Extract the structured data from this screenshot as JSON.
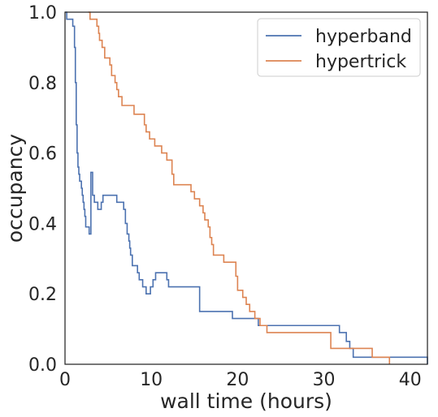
{
  "chart_data": {
    "type": "line",
    "xlabel": "wall time (hours)",
    "ylabel": "occupancy",
    "xlim": [
      0,
      42
    ],
    "ylim": [
      0.0,
      1.0
    ],
    "xticks": [
      0,
      10,
      20,
      30,
      40
    ],
    "xtick_labels": [
      "0",
      "10",
      "20",
      "30",
      "40"
    ],
    "yticks": [
      0.0,
      0.2,
      0.4,
      0.6,
      0.8,
      1.0
    ],
    "ytick_labels": [
      "0.0",
      "0.2",
      "0.4",
      "0.6",
      "0.8",
      "1.0"
    ],
    "grid": false,
    "legend_position": "top-right",
    "series": [
      {
        "name": "hyperband",
        "color": "#4c72b0",
        "points": [
          [
            0,
            1.0
          ],
          [
            0.2,
            1.0
          ],
          [
            0.2,
            0.98
          ],
          [
            0.9,
            0.98
          ],
          [
            0.9,
            0.96
          ],
          [
            1.1,
            0.96
          ],
          [
            1.1,
            0.9
          ],
          [
            1.2,
            0.9
          ],
          [
            1.2,
            0.8
          ],
          [
            1.3,
            0.8
          ],
          [
            1.3,
            0.68
          ],
          [
            1.4,
            0.68
          ],
          [
            1.4,
            0.6
          ],
          [
            1.5,
            0.6
          ],
          [
            1.5,
            0.56
          ],
          [
            1.6,
            0.56
          ],
          [
            1.6,
            0.54
          ],
          [
            1.7,
            0.54
          ],
          [
            1.7,
            0.52
          ],
          [
            1.9,
            0.52
          ],
          [
            1.9,
            0.5
          ],
          [
            2.0,
            0.5
          ],
          [
            2.0,
            0.48
          ],
          [
            2.1,
            0.48
          ],
          [
            2.1,
            0.46
          ],
          [
            2.2,
            0.46
          ],
          [
            2.2,
            0.44
          ],
          [
            2.3,
            0.44
          ],
          [
            2.3,
            0.42
          ],
          [
            2.4,
            0.42
          ],
          [
            2.4,
            0.39
          ],
          [
            2.8,
            0.39
          ],
          [
            2.8,
            0.37
          ],
          [
            3.0,
            0.37
          ],
          [
            3.0,
            0.545
          ],
          [
            3.2,
            0.545
          ],
          [
            3.2,
            0.48
          ],
          [
            3.4,
            0.48
          ],
          [
            3.4,
            0.46
          ],
          [
            3.8,
            0.46
          ],
          [
            3.8,
            0.44
          ],
          [
            4.2,
            0.44
          ],
          [
            4.2,
            0.46
          ],
          [
            4.4,
            0.46
          ],
          [
            4.4,
            0.48
          ],
          [
            6.0,
            0.48
          ],
          [
            6.0,
            0.46
          ],
          [
            6.8,
            0.46
          ],
          [
            6.8,
            0.44
          ],
          [
            7.0,
            0.44
          ],
          [
            7.0,
            0.4
          ],
          [
            7.2,
            0.4
          ],
          [
            7.2,
            0.37
          ],
          [
            7.4,
            0.37
          ],
          [
            7.4,
            0.35
          ],
          [
            7.5,
            0.35
          ],
          [
            7.5,
            0.33
          ],
          [
            7.6,
            0.33
          ],
          [
            7.6,
            0.31
          ],
          [
            7.8,
            0.31
          ],
          [
            7.8,
            0.28
          ],
          [
            8.4,
            0.28
          ],
          [
            8.4,
            0.26
          ],
          [
            8.6,
            0.26
          ],
          [
            8.6,
            0.24
          ],
          [
            9.0,
            0.24
          ],
          [
            9.0,
            0.22
          ],
          [
            9.4,
            0.22
          ],
          [
            9.4,
            0.2
          ],
          [
            9.9,
            0.2
          ],
          [
            9.9,
            0.22
          ],
          [
            10.2,
            0.22
          ],
          [
            10.2,
            0.24
          ],
          [
            10.5,
            0.24
          ],
          [
            10.5,
            0.26
          ],
          [
            11.8,
            0.26
          ],
          [
            11.8,
            0.24
          ],
          [
            12.0,
            0.24
          ],
          [
            12.0,
            0.22
          ],
          [
            15.6,
            0.22
          ],
          [
            15.6,
            0.15
          ],
          [
            19.4,
            0.15
          ],
          [
            19.4,
            0.13
          ],
          [
            22.4,
            0.13
          ],
          [
            22.4,
            0.11
          ],
          [
            31.8,
            0.11
          ],
          [
            31.8,
            0.09
          ],
          [
            32.6,
            0.09
          ],
          [
            32.6,
            0.065
          ],
          [
            33.0,
            0.065
          ],
          [
            33.0,
            0.045
          ],
          [
            33.4,
            0.045
          ],
          [
            33.4,
            0.02
          ],
          [
            42,
            0.02
          ],
          [
            42,
            0.0
          ]
        ]
      },
      {
        "name": "hypertrick",
        "color": "#dd8452",
        "points": [
          [
            2.7,
            1.0
          ],
          [
            2.9,
            1.0
          ],
          [
            2.9,
            0.98
          ],
          [
            3.7,
            0.98
          ],
          [
            3.7,
            0.96
          ],
          [
            3.9,
            0.96
          ],
          [
            3.9,
            0.94
          ],
          [
            4.0,
            0.94
          ],
          [
            4.0,
            0.92
          ],
          [
            4.3,
            0.92
          ],
          [
            4.3,
            0.9
          ],
          [
            4.6,
            0.9
          ],
          [
            4.6,
            0.87
          ],
          [
            5.2,
            0.87
          ],
          [
            5.2,
            0.85
          ],
          [
            5.4,
            0.85
          ],
          [
            5.4,
            0.82
          ],
          [
            5.8,
            0.82
          ],
          [
            5.8,
            0.8
          ],
          [
            6.0,
            0.8
          ],
          [
            6.0,
            0.78
          ],
          [
            6.2,
            0.78
          ],
          [
            6.2,
            0.76
          ],
          [
            6.6,
            0.76
          ],
          [
            6.6,
            0.735
          ],
          [
            8.0,
            0.735
          ],
          [
            8.0,
            0.71
          ],
          [
            9.2,
            0.71
          ],
          [
            9.2,
            0.68
          ],
          [
            9.4,
            0.68
          ],
          [
            9.4,
            0.66
          ],
          [
            9.8,
            0.66
          ],
          [
            9.8,
            0.64
          ],
          [
            10.4,
            0.64
          ],
          [
            10.4,
            0.62
          ],
          [
            11.2,
            0.62
          ],
          [
            11.2,
            0.6
          ],
          [
            11.8,
            0.6
          ],
          [
            11.8,
            0.58
          ],
          [
            12.4,
            0.58
          ],
          [
            12.4,
            0.54
          ],
          [
            12.6,
            0.54
          ],
          [
            12.6,
            0.51
          ],
          [
            14.6,
            0.51
          ],
          [
            14.6,
            0.49
          ],
          [
            15.0,
            0.49
          ],
          [
            15.0,
            0.47
          ],
          [
            15.6,
            0.47
          ],
          [
            15.6,
            0.45
          ],
          [
            16.0,
            0.45
          ],
          [
            16.0,
            0.43
          ],
          [
            16.2,
            0.43
          ],
          [
            16.2,
            0.41
          ],
          [
            16.6,
            0.41
          ],
          [
            16.6,
            0.39
          ],
          [
            16.8,
            0.39
          ],
          [
            16.8,
            0.36
          ],
          [
            17.0,
            0.36
          ],
          [
            17.0,
            0.34
          ],
          [
            17.2,
            0.34
          ],
          [
            17.2,
            0.31
          ],
          [
            18.4,
            0.31
          ],
          [
            18.4,
            0.29
          ],
          [
            19.8,
            0.29
          ],
          [
            19.8,
            0.25
          ],
          [
            20.0,
            0.25
          ],
          [
            20.0,
            0.21
          ],
          [
            20.6,
            0.21
          ],
          [
            20.6,
            0.19
          ],
          [
            21.0,
            0.19
          ],
          [
            21.0,
            0.17
          ],
          [
            21.4,
            0.17
          ],
          [
            21.4,
            0.15
          ],
          [
            22.0,
            0.15
          ],
          [
            22.0,
            0.13
          ],
          [
            22.6,
            0.13
          ],
          [
            22.6,
            0.11
          ],
          [
            23.4,
            0.11
          ],
          [
            23.4,
            0.09
          ],
          [
            30.8,
            0.09
          ],
          [
            30.8,
            0.045
          ],
          [
            35.6,
            0.045
          ],
          [
            35.6,
            0.02
          ],
          [
            37.6,
            0.02
          ],
          [
            37.6,
            0.0
          ]
        ]
      }
    ]
  }
}
